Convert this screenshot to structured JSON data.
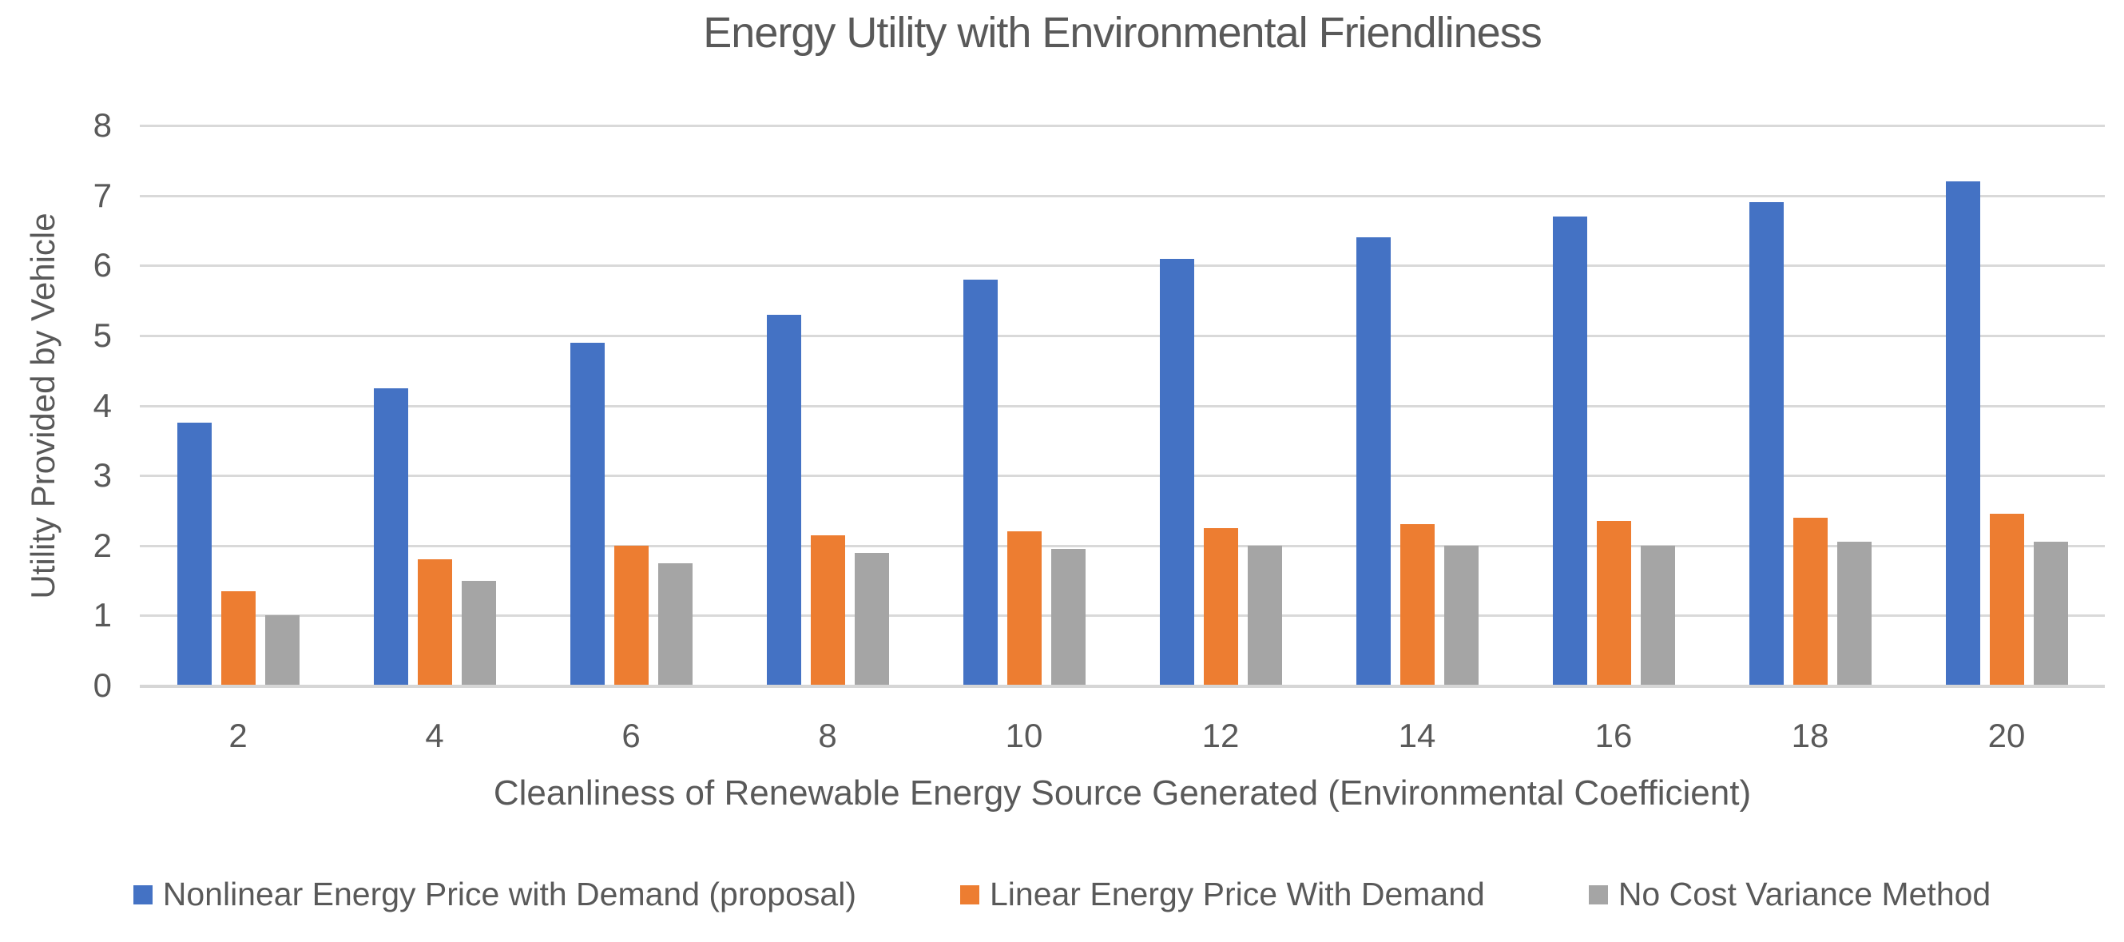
{
  "chart_data": {
    "type": "bar",
    "title": "Energy Utility with Environmental Friendliness",
    "xlabel": "Cleanliness of Renewable Energy Source Generated (Environmental Coefficient)",
    "ylabel": "Utility Provided by Vehicle",
    "categories": [
      2,
      4,
      6,
      8,
      10,
      12,
      14,
      16,
      18,
      20
    ],
    "series": [
      {
        "name": "Nonlinear Energy Price with Demand (proposal)",
        "color": "#4472C4",
        "values": [
          3.75,
          4.25,
          4.9,
          5.3,
          5.8,
          6.1,
          6.4,
          6.7,
          6.9,
          7.2
        ]
      },
      {
        "name": "Linear Energy Price With Demand",
        "color": "#ED7D31",
        "values": [
          1.35,
          1.8,
          2.0,
          2.15,
          2.2,
          2.25,
          2.3,
          2.35,
          2.4,
          2.45
        ]
      },
      {
        "name": "No Cost Variance Method",
        "color": "#A5A5A5",
        "values": [
          1.0,
          1.5,
          1.75,
          1.9,
          1.95,
          2.0,
          2.0,
          2.0,
          2.05,
          2.05
        ]
      }
    ],
    "ylim": [
      0,
      8
    ],
    "ytick_step": 1,
    "yticks": [
      0,
      1,
      2,
      3,
      4,
      5,
      6,
      7,
      8
    ],
    "grid": true,
    "legend_position": "bottom",
    "colors": {
      "text": "#595959",
      "gridline": "#D9D9D9",
      "background": "#FFFFFF"
    }
  }
}
